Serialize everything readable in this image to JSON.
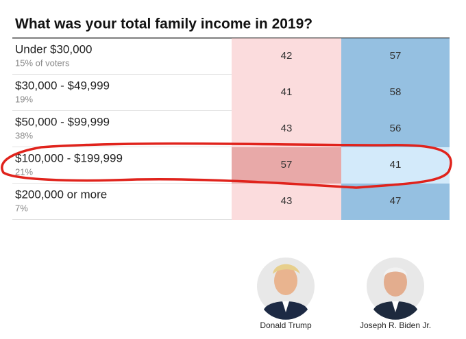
{
  "title": "What was your total family income in 2019?",
  "rows": [
    {
      "label": "Under $30,000",
      "share": "15% of voters",
      "trump": 42,
      "biden": 57,
      "highlighted": false
    },
    {
      "label": "$30,000 - $49,999",
      "share": "19%",
      "trump": 41,
      "biden": 58,
      "highlighted": false
    },
    {
      "label": "$50,000 - $99,999",
      "share": "38%",
      "trump": 43,
      "biden": 56,
      "highlighted": false
    },
    {
      "label": "$100,000 - $199,999",
      "share": "21%",
      "trump": 57,
      "biden": 41,
      "highlighted": true
    },
    {
      "label": "$200,000 or more",
      "share": "7%",
      "trump": 43,
      "biden": 47,
      "highlighted": false
    }
  ],
  "candidates": [
    {
      "name": "Donald Trump"
    },
    {
      "name": "Joseph R. Biden Jr."
    }
  ]
}
